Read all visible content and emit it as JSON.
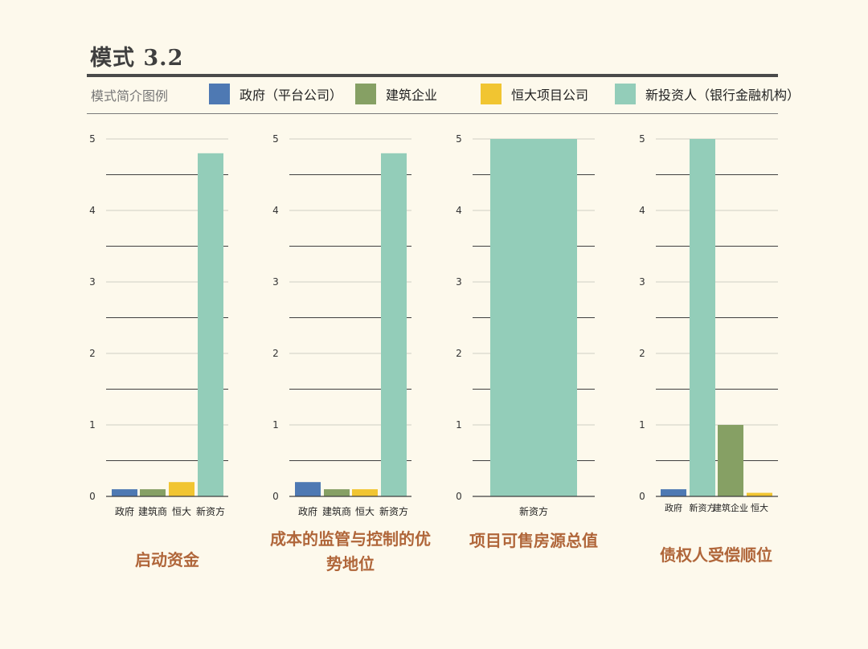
{
  "page": {
    "title": "模式 3.2"
  },
  "legend": {
    "title": "模式简介图例",
    "items": [
      {
        "label": "政府（平台公司）",
        "color": "#4e79b3"
      },
      {
        "label": "建筑企业",
        "color": "#86a064"
      },
      {
        "label": "恒大项目公司",
        "color": "#f1c531"
      },
      {
        "label": "新投资人（银行金融机构）",
        "color": "#93cdb9"
      }
    ]
  },
  "chart_data": [
    {
      "type": "bar",
      "caption": "启动资金",
      "categories": [
        "政府",
        "建筑商",
        "恒大",
        "新资方"
      ],
      "values": [
        0.1,
        0.1,
        0.2,
        4.8
      ],
      "colors": [
        "#4e79b3",
        "#86a064",
        "#f1c531",
        "#93cdb9"
      ],
      "ylim": [
        0,
        5
      ],
      "yticks": [
        0,
        1,
        2,
        3,
        4,
        5
      ],
      "grid": true
    },
    {
      "type": "bar",
      "caption": "成本的监管与控制的优势地位",
      "categories": [
        "政府",
        "建筑商",
        "恒大",
        "新资方"
      ],
      "values": [
        0.2,
        0.1,
        0.1,
        4.8
      ],
      "colors": [
        "#4e79b3",
        "#86a064",
        "#f1c531",
        "#93cdb9"
      ],
      "ylim": [
        0,
        5
      ],
      "yticks": [
        0,
        1,
        2,
        3,
        4,
        5
      ],
      "grid": true
    },
    {
      "type": "bar",
      "caption": "项目可售房源总值",
      "categories": [
        "新资方"
      ],
      "values": [
        5
      ],
      "colors": [
        "#93cdb9"
      ],
      "ylim": [
        0,
        5
      ],
      "yticks": [
        0,
        1,
        2,
        3,
        4,
        5
      ],
      "grid": true
    },
    {
      "type": "bar",
      "caption": "债权人受偿顺位",
      "categories": [
        "政府",
        "新资方",
        "建筑企业",
        "恒大"
      ],
      "values": [
        0.1,
        5,
        1,
        0.05
      ],
      "colors": [
        "#4e79b3",
        "#93cdb9",
        "#86a064",
        "#f1c531"
      ],
      "ylim": [
        0,
        5
      ],
      "yticks": [
        0,
        1,
        2,
        3,
        4,
        5
      ],
      "grid": true
    }
  ]
}
